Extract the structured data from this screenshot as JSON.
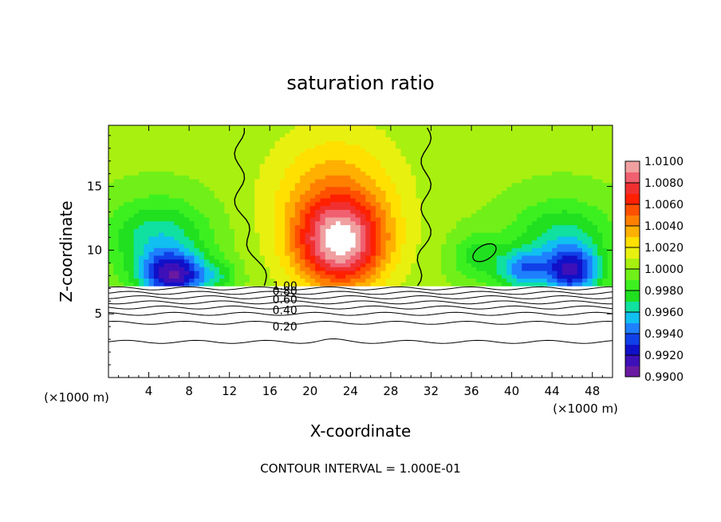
{
  "chart_data": {
    "type": "heatmap",
    "title": "saturation ratio",
    "xlabel": "X-coordinate",
    "ylabel": "Z-coordinate",
    "x_unit_left": "(×1000 m)",
    "x_unit_right": "(×1000 m)",
    "footer": "CONTOUR INTERVAL = 1.000E-01",
    "xlim": [
      0,
      50
    ],
    "ylim": [
      0,
      19.8
    ],
    "x_ticks": [
      4,
      8,
      12,
      16,
      20,
      24,
      28,
      32,
      36,
      40,
      44,
      48
    ],
    "x_tick_labels": [
      "4",
      "8",
      "12",
      "16",
      "20",
      "24",
      "28",
      "32",
      "36",
      "40",
      "44",
      "48"
    ],
    "y_ticks": [
      5,
      10,
      15
    ],
    "y_tick_labels": [
      "5",
      "10",
      "15"
    ],
    "colorbar": {
      "min": 0.99,
      "max": 1.01,
      "tick_values": [
        0.99,
        0.992,
        0.994,
        0.996,
        0.998,
        1.0,
        1.002,
        1.004,
        1.006,
        1.008,
        1.01
      ],
      "tick_labels": [
        "0.9900",
        "0.9920",
        "0.9940",
        "0.9960",
        "0.9980",
        "1.0000",
        "1.0020",
        "1.0040",
        "1.0060",
        "1.0080",
        "1.0100"
      ],
      "colors": [
        "#6a1aa0",
        "#3d10b8",
        "#1010c8",
        "#1040e8",
        "#1e80ff",
        "#10c0f0",
        "#10e0a0",
        "#20e020",
        "#3cf020",
        "#70f018",
        "#a8f010",
        "#e8f010",
        "#ffe000",
        "#ffb000",
        "#ff8000",
        "#ff5000",
        "#ff2000",
        "#f03030",
        "#f06070",
        "#f0a0a0"
      ]
    },
    "contour_labels": [
      {
        "text": "0.20",
        "value": 0.2
      },
      {
        "text": "0.40",
        "value": 0.4
      },
      {
        "text": "0.60",
        "value": 0.6
      },
      {
        "text": "0.80",
        "value": 0.8
      },
      {
        "text": "1.00",
        "value": 1.0
      }
    ],
    "contour_levels_below_cloud_base": [
      0.2,
      0.3,
      0.4,
      0.5,
      0.6,
      0.7,
      0.8,
      0.9
    ],
    "cloud_base_z": 7.2,
    "saturation_1_0_contour_x": [
      13,
      31.5
    ]
  }
}
